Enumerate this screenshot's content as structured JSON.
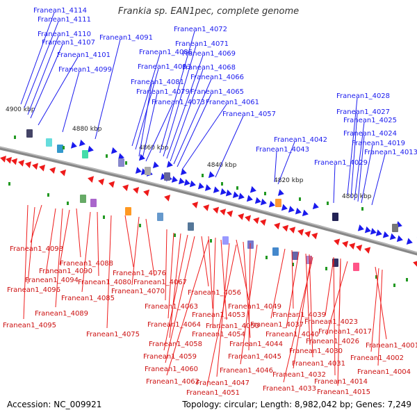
{
  "title": "Frankia sp. EAN1pec, complete genome",
  "footer": {
    "accession": "Accession: NC_009921",
    "summary": "Topology: circular; Length: 8,982,042 bp; Genes: 7,249"
  },
  "colors": {
    "forward": "#1a1aee",
    "reverse": "#ee1a1a",
    "backbone": "#888888",
    "tick": "#229922",
    "kbp_text": "#222222"
  },
  "kbp_ticks": [
    "4900 kbp",
    "4880 kbp",
    "4860 kbp",
    "4840 kbp",
    "4820 kbp",
    "4800 kbp"
  ],
  "forward_genes": [
    "Franean1_4114",
    "Franean1_4111",
    "Franean1_4110",
    "Franean1_4107",
    "Franean1_4101",
    "Franean1_4099",
    "Franean1_4091",
    "Franean1_4086",
    "Franean1_4083",
    "Franean1_4081",
    "Franean1_4079",
    "Franean1_4073",
    "Franean1_4072",
    "Franean1_4071",
    "Franean1_4069",
    "Franean1_4068",
    "Franean1_4066",
    "Franean1_4065",
    "Franean1_4061",
    "Franean1_4057",
    "Franean1_4042",
    "Franean1_4043",
    "Franean1_4029",
    "Franean1_4028",
    "Franean1_4027",
    "Franean1_4025",
    "Franean1_4024",
    "Franean1_4019",
    "Franean1_4013"
  ],
  "reverse_genes": [
    "Franean1_4098",
    "Franean1_4088",
    "Franean1_4090",
    "Franean1_4094",
    "Franean1_4096",
    "Franean1_4080",
    "Franean1_4076",
    "Franean1_4085",
    "Franean1_4067",
    "Franean1_4070",
    "Franean1_4089",
    "Franean1_4095",
    "Franean1_4075",
    "Franean1_4063",
    "Franean1_4056",
    "Franean1_4064",
    "Franean1_4053",
    "Franean1_4049",
    "Franean1_4058",
    "Franean1_4054",
    "Franean1_4050",
    "Franean1_4059",
    "Franean1_4044",
    "Franean1_4060",
    "Franean1_4045",
    "Franean1_4046",
    "Franean1_4062",
    "Franean1_4047",
    "Franean1_4051",
    "Franean1_4039",
    "Franean1_4037",
    "Franean1_4040",
    "Franean1_4030",
    "Franean1_4031",
    "Franean1_4032",
    "Franean1_4033",
    "Franean1_4023",
    "Franean1_4017",
    "Franean1_4026",
    "Franean1_4001",
    "Franean1_4002",
    "Franean1_4004",
    "Franean1_4014",
    "Franean1_4015"
  ]
}
